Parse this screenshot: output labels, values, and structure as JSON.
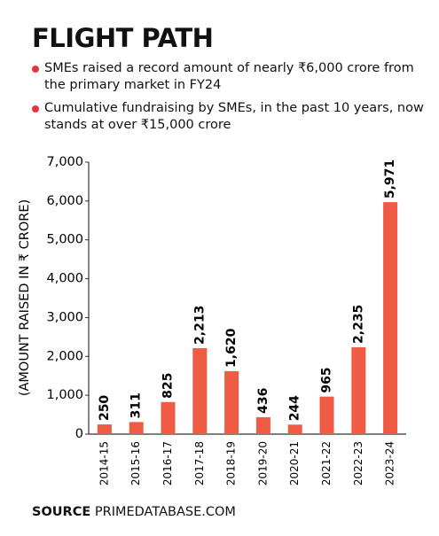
{
  "chart_data": {
    "type": "bar",
    "title": "FLIGHT PATH",
    "notes": [
      "SMEs raised a record amount of nearly ₹6,000 crore from the primary market in FY24",
      "Cumulative fundraising by SMEs, in the past 10 years, now stands at over ₹15,000 crore"
    ],
    "y_label": "(AMOUNT RAISED IN ₹ CRORE)",
    "categories": [
      "2014-15",
      "2015-16",
      "2016-17",
      "2017-18",
      "2018-19",
      "2019-20",
      "2020-21",
      "2021-22",
      "2022-23",
      "2023-24"
    ],
    "values": [
      250,
      311,
      825,
      2213,
      1620,
      436,
      244,
      965,
      2235,
      5971
    ],
    "value_labels": [
      "250",
      "311",
      "825",
      "2,213",
      "1,620",
      "436",
      "244",
      "965",
      "2,235",
      "5,971"
    ],
    "color": "#ef5b45",
    "ylim": [
      0,
      7000
    ],
    "yticks": [
      0,
      {
        "value": 1000,
        "label": "1,000"
      },
      {
        "value": 2000,
        "label": "2,000"
      },
      {
        "value": 3000,
        "label": "3,000"
      },
      {
        "value": 4000,
        "label": "4,000"
      },
      {
        "value": 5000,
        "label": "5,000"
      },
      {
        "value": 6000,
        "label": "6,000"
      },
      {
        "value": 7000,
        "label": "7,000"
      }
    ],
    "source_label": "SOURCE",
    "source_text": "PRIMEDATABASE.COM"
  }
}
